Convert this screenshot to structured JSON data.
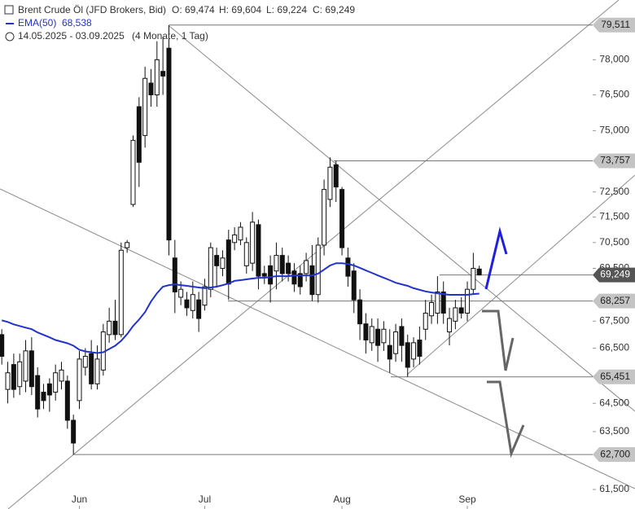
{
  "chart_data": {
    "type": "candlestick",
    "title": "Brent Crude Öl (JFD Brokers, Bid)",
    "ohlc_text": [
      "O: 69,474",
      "H: 69,604",
      "L: 69,224",
      "C: 69,249"
    ],
    "indicator_value": "68,538",
    "period": "14.05.2025 - 03.09.2025",
    "range": "(4 Monate, 1 Tag)",
    "open": [
      67.0,
      65.0,
      65.9,
      65.1,
      65.3,
      66.4,
      65.5,
      64.9,
      65.2,
      64.9,
      65.3,
      65.3,
      63.9,
      64.6,
      65.8,
      66.3,
      65.2,
      65.7,
      67.0,
      67.5,
      67.0,
      70.3,
      72.0,
      76.0,
      74.8,
      77.0,
      76.5,
      77.5,
      78.5,
      69.9,
      68.4,
      68.3,
      67.9,
      68.3,
      68.1,
      68.7,
      70.0,
      69.5,
      70.6,
      70.5,
      70.6,
      69.6,
      69.7,
      71.2,
      69.3,
      69.6,
      69.4,
      70.0,
      69.7,
      69.4,
      69.3,
      69.3,
      69.6,
      68.5,
      70.4,
      72.2,
      73.6,
      72.6,
      69.9,
      69.4,
      68.3,
      67.4,
      66.7,
      67.2,
      66.7,
      66.6,
      66.3,
      67.3,
      66.7,
      66.1,
      66.8,
      67.2,
      67.7,
      67.8,
      68.6,
      67.1,
      67.5,
      68.0,
      67.8,
      68.7,
      69.474
    ],
    "high": [
      67.2,
      66.0,
      66.3,
      66.3,
      66.8,
      66.9,
      65.8,
      65.2,
      65.4,
      65.9,
      66.0,
      65.5,
      64.1,
      66.4,
      66.5,
      66.8,
      66.6,
      67.4,
      68.0,
      68.3,
      70.5,
      70.6,
      74.8,
      76.4,
      77.7,
      77.6,
      78.8,
      79.0,
      79.511,
      70.6,
      69.0,
      68.6,
      69.0,
      68.6,
      69.1,
      70.5,
      70.3,
      70.2,
      71.0,
      71.1,
      71.3,
      70.7,
      71.7,
      71.4,
      69.6,
      70.0,
      70.5,
      70.3,
      70.0,
      69.7,
      69.6,
      70.1,
      70.4,
      70.7,
      73.0,
      73.9,
      73.757,
      72.7,
      70.3,
      69.7,
      68.7,
      67.8,
      67.6,
      67.6,
      67.5,
      67.2,
      67.4,
      67.6,
      67.0,
      66.9,
      67.3,
      68.3,
      68.5,
      69.2,
      69.0,
      68.0,
      68.3,
      68.4,
      69.0,
      70.1,
      69.604
    ],
    "low": [
      65.9,
      64.5,
      64.7,
      64.8,
      64.9,
      64.8,
      64.0,
      64.3,
      64.2,
      64.6,
      65.0,
      63.6,
      62.7,
      64.3,
      65.5,
      65.0,
      65.0,
      65.5,
      66.7,
      66.8,
      66.9,
      70.1,
      71.9,
      72.7,
      74.3,
      76.0,
      76.0,
      76.5,
      70.0,
      67.8,
      68.1,
      67.7,
      67.6,
      67.1,
      67.9,
      68.4,
      68.8,
      69.2,
      68.3,
      70.2,
      70.4,
      69.3,
      69.4,
      68.7,
      68.9,
      68.2,
      68.7,
      69.0,
      69.0,
      68.6,
      68.5,
      69.0,
      68.257,
      68.2,
      70.0,
      71.9,
      72.1,
      70.0,
      68.8,
      67.8,
      66.8,
      66.3,
      66.4,
      66.0,
      66.4,
      65.6,
      66.0,
      66.0,
      65.451,
      65.8,
      65.9,
      66.8,
      67.4,
      67.4,
      67.4,
      66.6,
      67.2,
      67.6,
      67.5,
      68.5,
      69.224
    ],
    "close": [
      66.2,
      65.6,
      65.0,
      66.0,
      66.4,
      65.1,
      64.3,
      64.6,
      64.8,
      65.6,
      65.7,
      63.9,
      63.1,
      66.1,
      66.2,
      65.2,
      66.1,
      67.1,
      67.5,
      67.0,
      70.2,
      70.5,
      74.6,
      73.7,
      77.2,
      76.5,
      78.0,
      77.3,
      70.6,
      68.6,
      68.7,
      68.0,
      68.5,
      67.6,
      68.8,
      70.3,
      69.6,
      69.9,
      68.9,
      70.8,
      71.1,
      70.5,
      71.3,
      69.2,
      69.2,
      68.9,
      70.0,
      69.3,
      69.3,
      68.9,
      68.8,
      69.8,
      68.5,
      70.4,
      72.6,
      73.5,
      72.7,
      70.3,
      69.2,
      68.3,
      67.4,
      66.8,
      67.3,
      66.6,
      67.2,
      66.1,
      67.1,
      66.6,
      65.8,
      66.7,
      66.2,
      67.8,
      68.2,
      68.6,
      67.8,
      67.6,
      68.0,
      67.8,
      68.7,
      69.5,
      69.249
    ],
    "series": [
      {
        "name": "EMA(50)",
        "color": "#2233cc",
        "values": [
          67.53,
          67.47,
          67.38,
          67.32,
          67.26,
          67.2,
          67.08,
          66.99,
          66.9,
          66.8,
          66.74,
          66.68,
          66.59,
          66.44,
          66.38,
          66.35,
          66.32,
          66.35,
          66.47,
          66.59,
          66.77,
          67.02,
          67.32,
          67.56,
          67.84,
          68.24,
          68.55,
          68.8,
          68.86,
          68.89,
          68.86,
          68.83,
          68.8,
          68.77,
          68.74,
          68.77,
          68.8,
          68.86,
          68.92,
          69.02,
          69.05,
          69.08,
          69.11,
          69.14,
          69.14,
          69.17,
          69.2,
          69.2,
          69.2,
          69.23,
          69.23,
          69.23,
          69.23,
          69.3,
          69.45,
          69.61,
          69.7,
          69.7,
          69.67,
          69.61,
          69.52,
          69.42,
          69.33,
          69.23,
          69.14,
          69.05,
          68.95,
          68.89,
          68.83,
          68.74,
          68.68,
          68.62,
          68.58,
          68.55,
          68.52,
          68.49,
          68.49,
          68.49,
          68.49,
          68.52,
          68.538
        ]
      }
    ],
    "xlim": [
      -0.3,
      99
    ],
    "xticks": [
      {
        "value": 13,
        "label": "Jun"
      },
      {
        "value": 34,
        "label": "Jul"
      },
      {
        "value": 57,
        "label": "Aug"
      },
      {
        "value": 78,
        "label": "Sep"
      }
    ],
    "ylim": [
      60.84,
      80.62
    ],
    "log_y": true,
    "yticks": [
      {
        "value": 78,
        "label": "78,000"
      },
      {
        "value": 76.5,
        "label": "76,500"
      },
      {
        "value": 75,
        "label": "75,000"
      },
      {
        "value": 72.5,
        "label": "72,500"
      },
      {
        "value": 71.5,
        "label": "71,500"
      },
      {
        "value": 70.5,
        "label": "70,500"
      },
      {
        "value": 69.5,
        "label": "69,500"
      },
      {
        "value": 67.5,
        "label": "67,500"
      },
      {
        "value": 66.5,
        "label": "66,500"
      },
      {
        "value": 64.5,
        "label": "64,500"
      },
      {
        "value": 63.5,
        "label": "63,500"
      },
      {
        "value": 61.5,
        "label": "61,500"
      }
    ],
    "levels": [
      {
        "value": 79.511,
        "label": "79,511"
      },
      {
        "value": 73.757,
        "label": "73,757"
      },
      {
        "value": 68.257,
        "label": "68,257"
      },
      {
        "value": 65.451,
        "label": "65,451"
      },
      {
        "value": 62.7,
        "label": "62,700"
      }
    ],
    "current_price": {
      "value": 69.249,
      "label": "69,249"
    }
  }
}
